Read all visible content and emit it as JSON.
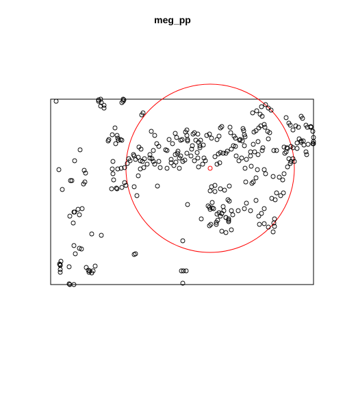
{
  "chart_data": {
    "type": "scatter",
    "title": "meg_pp",
    "xlabel": "",
    "ylabel": "",
    "xlim": [
      0,
      384
    ],
    "ylim": [
      0,
      271
    ],
    "grid": false,
    "colors": {
      "points": "#000000",
      "frame": "#000000",
      "circle": "#ff0000",
      "center": "#ff0000"
    },
    "highlight": {
      "center": [
        233,
        170
      ],
      "radius": 123
    },
    "points": [
      [
        8,
        268
      ],
      [
        70,
        270
      ],
      [
        74,
        266
      ],
      [
        73,
        261
      ],
      [
        78,
        258
      ],
      [
        106,
        268
      ],
      [
        104,
        266
      ],
      [
        133,
        248
      ],
      [
        135,
        251
      ],
      [
        147,
        224
      ],
      [
        152,
        218
      ],
      [
        173,
        212
      ],
      [
        184,
        215
      ],
      [
        182,
        221
      ],
      [
        197,
        223
      ],
      [
        199,
        226
      ],
      [
        208,
        220
      ],
      [
        210,
        222
      ],
      [
        215,
        220
      ],
      [
        228,
        218
      ],
      [
        232,
        220
      ],
      [
        235,
        214
      ],
      [
        243,
        212
      ],
      [
        246,
        217
      ],
      [
        250,
        231
      ],
      [
        248,
        229
      ],
      [
        262,
        230
      ],
      [
        263,
        222
      ],
      [
        268,
        217
      ],
      [
        270,
        214
      ],
      [
        277,
        212
      ],
      [
        281,
        228
      ],
      [
        282,
        225
      ],
      [
        283,
        219
      ],
      [
        284,
        216
      ],
      [
        297,
        223
      ],
      [
        300,
        225
      ],
      [
        304,
        229
      ],
      [
        307,
        232
      ],
      [
        312,
        234
      ],
      [
        313,
        230
      ],
      [
        317,
        224
      ],
      [
        320,
        222
      ],
      [
        306,
        249
      ],
      [
        309,
        246
      ],
      [
        295,
        251
      ],
      [
        301,
        254
      ],
      [
        308,
        260
      ],
      [
        314,
        263
      ],
      [
        318,
        258
      ],
      [
        322,
        255
      ],
      [
        344,
        244
      ],
      [
        348,
        236
      ],
      [
        350,
        233
      ],
      [
        354,
        226
      ],
      [
        358,
        232
      ],
      [
        362,
        230
      ],
      [
        368,
        243
      ],
      [
        366,
        246
      ],
      [
        373,
        233
      ],
      [
        380,
        231
      ],
      [
        383,
        224
      ],
      [
        384,
        215
      ],
      [
        384,
        206
      ],
      [
        376,
        205
      ],
      [
        363,
        213
      ],
      [
        360,
        207
      ],
      [
        366,
        208
      ],
      [
        370,
        204
      ],
      [
        373,
        194
      ],
      [
        374,
        190
      ],
      [
        356,
        180
      ],
      [
        350,
        177
      ],
      [
        346,
        172
      ],
      [
        348,
        184
      ],
      [
        351,
        180
      ],
      [
        354,
        184
      ],
      [
        344,
        194
      ],
      [
        345,
        200
      ],
      [
        341,
        201
      ],
      [
        339,
        153
      ],
      [
        341,
        162
      ],
      [
        334,
        157
      ],
      [
        325,
        158
      ],
      [
        330,
        134
      ],
      [
        327,
        96
      ],
      [
        326,
        90
      ],
      [
        327,
        85
      ],
      [
        325,
        77
      ],
      [
        318,
        84
      ],
      [
        312,
        89
      ],
      [
        305,
        88
      ],
      [
        243,
        176
      ],
      [
        247,
        178
      ],
      [
        245,
        191
      ],
      [
        248,
        193
      ],
      [
        252,
        192
      ],
      [
        258,
        195
      ],
      [
        264,
        198
      ],
      [
        267,
        203
      ],
      [
        271,
        188
      ],
      [
        275,
        181
      ],
      [
        279,
        185
      ],
      [
        286,
        183
      ],
      [
        284,
        170
      ],
      [
        285,
        150
      ],
      [
        294,
        148
      ],
      [
        296,
        150
      ],
      [
        300,
        156
      ],
      [
        302,
        168
      ],
      [
        312,
        168
      ],
      [
        314,
        162
      ],
      [
        293,
        173
      ],
      [
        292,
        188
      ],
      [
        296,
        205
      ],
      [
        310,
        200
      ],
      [
        309,
        196
      ],
      [
        318,
        213
      ],
      [
        326,
        196
      ],
      [
        330,
        196
      ],
      [
        303,
        209
      ],
      [
        261,
        144
      ],
      [
        254,
        138
      ],
      [
        248,
        140
      ],
      [
        240,
        145
      ],
      [
        233,
        137
      ],
      [
        240,
        136
      ],
      [
        235,
        143
      ],
      [
        236,
        120
      ],
      [
        232,
        113
      ],
      [
        230,
        115
      ],
      [
        248,
        100
      ],
      [
        250,
        104
      ],
      [
        256,
        98
      ],
      [
        260,
        96
      ],
      [
        260,
        92
      ],
      [
        250,
        78
      ],
      [
        256,
        76
      ],
      [
        264,
        80
      ],
      [
        260,
        94
      ],
      [
        259,
        124
      ],
      [
        261,
        122
      ],
      [
        253,
        108
      ],
      [
        246,
        105
      ],
      [
        242,
        91
      ],
      [
        242,
        88
      ],
      [
        234,
        88
      ],
      [
        232,
        86
      ],
      [
        244,
        94
      ],
      [
        256,
        98
      ],
      [
        216,
        172
      ],
      [
        222,
        176
      ],
      [
        226,
        181
      ],
      [
        224,
        185
      ],
      [
        215,
        185
      ],
      [
        210,
        181
      ],
      [
        205,
        188
      ],
      [
        199,
        192
      ],
      [
        188,
        185
      ],
      [
        190,
        188
      ],
      [
        193,
        180
      ],
      [
        196,
        182
      ],
      [
        188,
        170
      ],
      [
        180,
        174
      ],
      [
        176,
        178
      ],
      [
        170,
        170
      ],
      [
        160,
        171
      ],
      [
        158,
        180
      ],
      [
        152,
        176
      ],
      [
        148,
        184
      ],
      [
        145,
        185
      ],
      [
        137,
        184
      ],
      [
        134,
        180
      ],
      [
        131,
        181
      ],
      [
        128,
        186
      ],
      [
        122,
        188
      ],
      [
        121,
        190
      ],
      [
        116,
        181
      ],
      [
        114,
        184
      ],
      [
        112,
        177
      ],
      [
        108,
        171
      ],
      [
        98,
        169
      ],
      [
        90,
        169
      ],
      [
        91,
        180
      ],
      [
        91,
        162
      ],
      [
        89,
        140
      ],
      [
        124,
        183
      ],
      [
        132,
        198
      ],
      [
        129,
        201
      ],
      [
        150,
        180
      ],
      [
        170,
        196
      ],
      [
        178,
        206
      ],
      [
        190,
        211
      ],
      [
        199,
        218
      ],
      [
        206,
        198
      ],
      [
        214,
        193
      ],
      [
        218,
        203
      ],
      [
        218,
        200
      ],
      [
        207,
        203
      ],
      [
        200,
        210
      ],
      [
        110,
        145
      ],
      [
        122,
        143
      ],
      [
        128,
        159
      ],
      [
        136,
        171
      ],
      [
        141,
        176
      ],
      [
        156,
        144
      ],
      [
        126,
        130
      ],
      [
        200,
        117
      ],
      [
        220,
        96
      ],
      [
        238,
        111
      ],
      [
        233,
        110
      ],
      [
        250,
        104
      ],
      [
        252,
        114
      ],
      [
        236,
        112
      ],
      [
        243,
        103
      ],
      [
        264,
        108
      ],
      [
        266,
        102
      ],
      [
        274,
        108
      ],
      [
        283,
        111
      ],
      [
        286,
        119
      ],
      [
        292,
        108
      ],
      [
        300,
        123
      ],
      [
        304,
        100
      ],
      [
        308,
        104
      ],
      [
        312,
        111
      ],
      [
        323,
        126
      ],
      [
        328,
        124
      ],
      [
        336,
        130
      ],
      [
        340,
        134
      ],
      [
        103,
        170
      ],
      [
        150,
        196
      ],
      [
        145,
        190
      ],
      [
        131,
        169
      ],
      [
        176,
        183
      ],
      [
        185,
        192
      ],
      [
        183,
        179
      ],
      [
        84,
        210
      ],
      [
        85,
        212
      ],
      [
        90,
        219
      ],
      [
        104,
        211
      ],
      [
        98,
        214
      ],
      [
        95,
        206
      ],
      [
        99,
        211
      ],
      [
        102,
        212
      ],
      [
        97,
        218
      ],
      [
        94,
        229
      ],
      [
        155,
        206
      ],
      [
        158,
        202
      ],
      [
        168,
        197
      ],
      [
        182,
        190
      ],
      [
        186,
        195
      ],
      [
        192,
        212
      ],
      [
        200,
        212
      ],
      [
        212,
        211
      ],
      [
        216,
        208
      ],
      [
        219,
        211
      ],
      [
        223,
        204
      ],
      [
        240,
        187
      ],
      [
        256,
        192
      ],
      [
        270,
        202
      ],
      [
        276,
        211
      ],
      [
        280,
        210
      ],
      [
        283,
        203
      ],
      [
        292,
        194
      ],
      [
        298,
        194
      ],
      [
        303,
        190
      ],
      [
        342,
        192
      ],
      [
        346,
        199
      ],
      [
        351,
        202
      ],
      [
        354,
        200
      ],
      [
        360,
        199
      ],
      [
        366,
        210
      ],
      [
        369,
        210
      ],
      [
        375,
        230
      ],
      [
        380,
        230
      ],
      [
        384,
        209
      ],
      [
        383,
        206
      ],
      [
        51,
        163
      ],
      [
        49,
        167
      ],
      [
        35,
        181
      ],
      [
        50,
        150
      ],
      [
        48,
        147
      ],
      [
        43,
        197
      ],
      [
        34,
        106
      ],
      [
        33,
        90
      ],
      [
        45,
        52
      ],
      [
        36,
        45
      ],
      [
        34,
        57
      ],
      [
        15,
        34
      ],
      [
        13,
        30
      ],
      [
        14,
        29
      ],
      [
        14,
        28
      ],
      [
        14,
        22
      ],
      [
        14,
        18
      ],
      [
        27,
        26
      ],
      [
        42,
        53
      ],
      [
        60,
        74
      ],
      [
        74,
        72
      ],
      [
        34,
        0
      ],
      [
        52,
        25
      ],
      [
        55,
        21
      ],
      [
        57,
        20
      ],
      [
        56,
        18
      ],
      [
        60,
        17
      ],
      [
        65,
        27
      ],
      [
        62,
        20
      ],
      [
        70,
        268
      ],
      [
        73,
        271
      ],
      [
        78,
        262
      ],
      [
        106,
        271
      ],
      [
        107,
        270
      ],
      [
        122,
        44
      ],
      [
        124,
        45
      ],
      [
        191,
        20
      ],
      [
        194,
        20
      ],
      [
        198,
        20
      ],
      [
        193,
        2
      ],
      [
        193,
        64
      ],
      [
        27,
        1
      ],
      [
        28,
        0
      ],
      [
        12,
        168
      ],
      [
        29,
        152
      ],
      [
        17,
        139
      ],
      [
        31,
        152
      ],
      [
        28,
        100
      ],
      [
        35,
        106
      ],
      [
        40,
        110
      ],
      [
        46,
        111
      ],
      [
        42,
        102
      ],
      [
        96,
        141
      ],
      [
        97,
        140
      ],
      [
        104,
        142
      ],
      [
        108,
        149
      ],
      [
        92,
        153
      ]
    ]
  }
}
